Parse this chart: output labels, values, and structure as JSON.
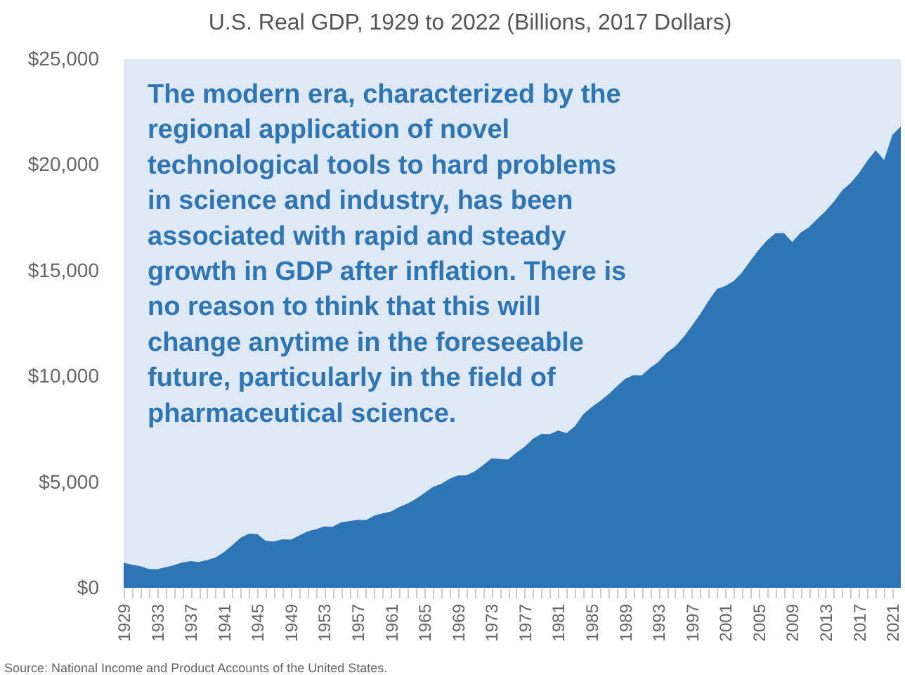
{
  "chart_data": {
    "type": "area",
    "title": "U.S. Real GDP, 1929 to 2022 (Billions, 2017 Dollars)",
    "annotations": [
      "The modern era, characterized by the\nregional application of novel\ntechnological tools to hard problems\nin science and industry, has been\nassociated with rapid and steady\ngrowth in GDP after inflation. There is\nno reason to think that this will\nchange anytime in the foreseeable\nfuture, particularly in the field of\npharmaceutical science.",
      "Source: National Income and Product Accounts of the United States."
    ],
    "x": [
      1929,
      1930,
      1931,
      1932,
      1933,
      1934,
      1935,
      1936,
      1937,
      1938,
      1939,
      1940,
      1941,
      1942,
      1943,
      1944,
      1945,
      1946,
      1947,
      1948,
      1949,
      1950,
      1951,
      1952,
      1953,
      1954,
      1955,
      1956,
      1957,
      1958,
      1959,
      1960,
      1961,
      1962,
      1963,
      1964,
      1965,
      1966,
      1967,
      1968,
      1969,
      1970,
      1971,
      1972,
      1973,
      1974,
      1975,
      1976,
      1977,
      1978,
      1979,
      1980,
      1981,
      1982,
      1983,
      1984,
      1985,
      1986,
      1987,
      1988,
      1989,
      1990,
      1991,
      1992,
      1993,
      1994,
      1995,
      1996,
      1997,
      1998,
      1999,
      2000,
      2001,
      2002,
      2003,
      2004,
      2005,
      2006,
      2007,
      2008,
      2009,
      2010,
      2011,
      2012,
      2013,
      2014,
      2015,
      2016,
      2017,
      2018,
      2019,
      2020,
      2021,
      2022
    ],
    "values": [
      1190,
      1090,
      1020,
      890,
      880,
      970,
      1060,
      1200,
      1260,
      1220,
      1310,
      1430,
      1690,
      2010,
      2370,
      2560,
      2540,
      2220,
      2190,
      2290,
      2280,
      2470,
      2670,
      2770,
      2900,
      2880,
      3090,
      3150,
      3220,
      3200,
      3420,
      3520,
      3610,
      3820,
      3990,
      4210,
      4480,
      4770,
      4910,
      5150,
      5310,
      5320,
      5500,
      5790,
      6120,
      6090,
      6070,
      6390,
      6670,
      7050,
      7280,
      7260,
      7440,
      7310,
      7640,
      8200,
      8540,
      8830,
      9140,
      9520,
      9870,
      10060,
      10040,
      10400,
      10680,
      11120,
      11410,
      11850,
      12380,
      12950,
      13570,
      14130,
      14270,
      14500,
      14910,
      15460,
      15980,
      16430,
      16760,
      16780,
      16350,
      16790,
      17050,
      17440,
      17810,
      18260,
      18800,
      19140,
      19610,
      20190,
      20690,
      20230,
      21410,
      21820
    ],
    "color": "#2e75b6",
    "xlim": [
      1929,
      2022
    ],
    "xticks": [
      1929,
      {
        "value": 1930,
        "label": null
      },
      {
        "value": 1931,
        "label": null
      },
      {
        "value": 1932,
        "label": null
      },
      1933,
      {
        "value": 1934,
        "label": null
      },
      {
        "value": 1935,
        "label": null
      },
      {
        "value": 1936,
        "label": null
      },
      1937,
      {
        "value": 1938,
        "label": null
      },
      {
        "value": 1939,
        "label": null
      },
      {
        "value": 1940,
        "label": null
      },
      1941,
      {
        "value": 1942,
        "label": null
      },
      {
        "value": 1943,
        "label": null
      },
      {
        "value": 1944,
        "label": null
      },
      1945,
      {
        "value": 1946,
        "label": null
      },
      {
        "value": 1947,
        "label": null
      },
      {
        "value": 1948,
        "label": null
      },
      1949,
      {
        "value": 1950,
        "label": null
      },
      {
        "value": 1951,
        "label": null
      },
      {
        "value": 1952,
        "label": null
      },
      1953,
      {
        "value": 1954,
        "label": null
      },
      {
        "value": 1955,
        "label": null
      },
      {
        "value": 1956,
        "label": null
      },
      1957,
      {
        "value": 1958,
        "label": null
      },
      {
        "value": 1959,
        "label": null
      },
      {
        "value": 1960,
        "label": null
      },
      1961,
      {
        "value": 1962,
        "label": null
      },
      {
        "value": 1963,
        "label": null
      },
      {
        "value": 1964,
        "label": null
      },
      1965,
      {
        "value": 1966,
        "label": null
      },
      {
        "value": 1967,
        "label": null
      },
      {
        "value": 1968,
        "label": null
      },
      1969,
      {
        "value": 1970,
        "label": null
      },
      {
        "value": 1971,
        "label": null
      },
      {
        "value": 1972,
        "label": null
      },
      1973,
      {
        "value": 1974,
        "label": null
      },
      {
        "value": 1975,
        "label": null
      },
      {
        "value": 1976,
        "label": null
      },
      1977,
      {
        "value": 1978,
        "label": null
      },
      {
        "value": 1979,
        "label": null
      },
      {
        "value": 1980,
        "label": null
      },
      1981,
      {
        "value": 1982,
        "label": null
      },
      {
        "value": 1983,
        "label": null
      },
      {
        "value": 1984,
        "label": null
      },
      1985,
      {
        "value": 1986,
        "label": null
      },
      {
        "value": 1987,
        "label": null
      },
      {
        "value": 1988,
        "label": null
      },
      1989,
      {
        "value": 1990,
        "label": null
      },
      {
        "value": 1991,
        "label": null
      },
      {
        "value": 1992,
        "label": null
      },
      1993,
      {
        "value": 1994,
        "label": null
      },
      {
        "value": 1995,
        "label": null
      },
      {
        "value": 1996,
        "label": null
      },
      1997,
      {
        "value": 1998,
        "label": null
      },
      {
        "value": 1999,
        "label": null
      },
      {
        "value": 2000,
        "label": null
      },
      2001,
      {
        "value": 2002,
        "label": null
      },
      {
        "value": 2003,
        "label": null
      },
      {
        "value": 2004,
        "label": null
      },
      2005,
      {
        "value": 2006,
        "label": null
      },
      {
        "value": 2007,
        "label": null
      },
      {
        "value": 2008,
        "label": null
      },
      2009,
      {
        "value": 2010,
        "label": null
      },
      {
        "value": 2011,
        "label": null
      },
      {
        "value": 2012,
        "label": null
      },
      2013,
      {
        "value": 2014,
        "label": null
      },
      {
        "value": 2015,
        "label": null
      },
      {
        "value": 2016,
        "label": null
      },
      2017,
      {
        "value": 2018,
        "label": null
      },
      {
        "value": 2019,
        "label": null
      },
      {
        "value": 2020,
        "label": null
      },
      2021
    ],
    "ylim": [
      0,
      25000
    ],
    "yticks": [
      {
        "value": 0,
        "label": "$0"
      },
      {
        "value": 5000,
        "label": "$5,000"
      },
      {
        "value": 10000,
        "label": "$10,000"
      },
      {
        "value": 15000,
        "label": "$15,000"
      },
      {
        "value": 20000,
        "label": "$20,000"
      },
      {
        "value": 25000,
        "label": "$25,000"
      }
    ]
  }
}
